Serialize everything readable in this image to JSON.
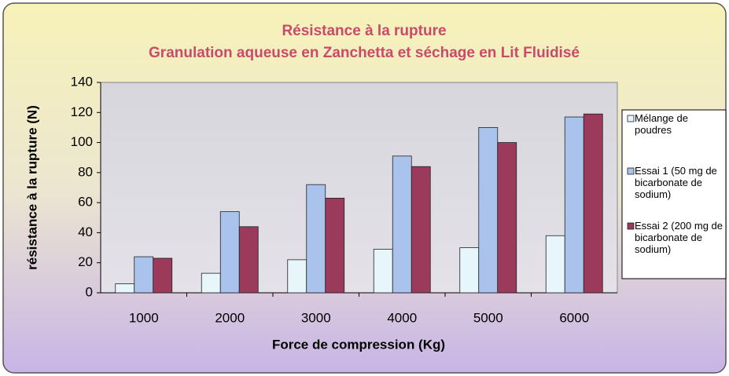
{
  "chart_data": {
    "type": "bar",
    "title": "Résistance à la rupture",
    "subtitle": "Granulation aqueuse en Zanchetta et séchage en Lit Fluidisé",
    "x_label": "Force de compression (Kg)",
    "y_label": "résistance à la rupture (N)",
    "categories": [
      "1000",
      "2000",
      "3000",
      "4000",
      "5000",
      "6000"
    ],
    "series": [
      {
        "name": "Mélange de poudres",
        "color": "#e6f6fb",
        "values": [
          6,
          13,
          22,
          29,
          30,
          38
        ]
      },
      {
        "name": "Essai 1 (50 mg de bicarbonate de sodium)",
        "color": "#a9c3ec",
        "values": [
          24,
          54,
          72,
          91,
          110,
          117
        ]
      },
      {
        "name": "Essai 2 (200 mg de bicarbonate de sodium)",
        "color": "#9c3a5c",
        "values": [
          23,
          44,
          63,
          84,
          100,
          119
        ]
      }
    ],
    "ylim": [
      0,
      140
    ],
    "yticks": [
      0,
      20,
      40,
      60,
      80,
      100,
      120,
      140
    ],
    "grid": false,
    "legend": "right"
  }
}
